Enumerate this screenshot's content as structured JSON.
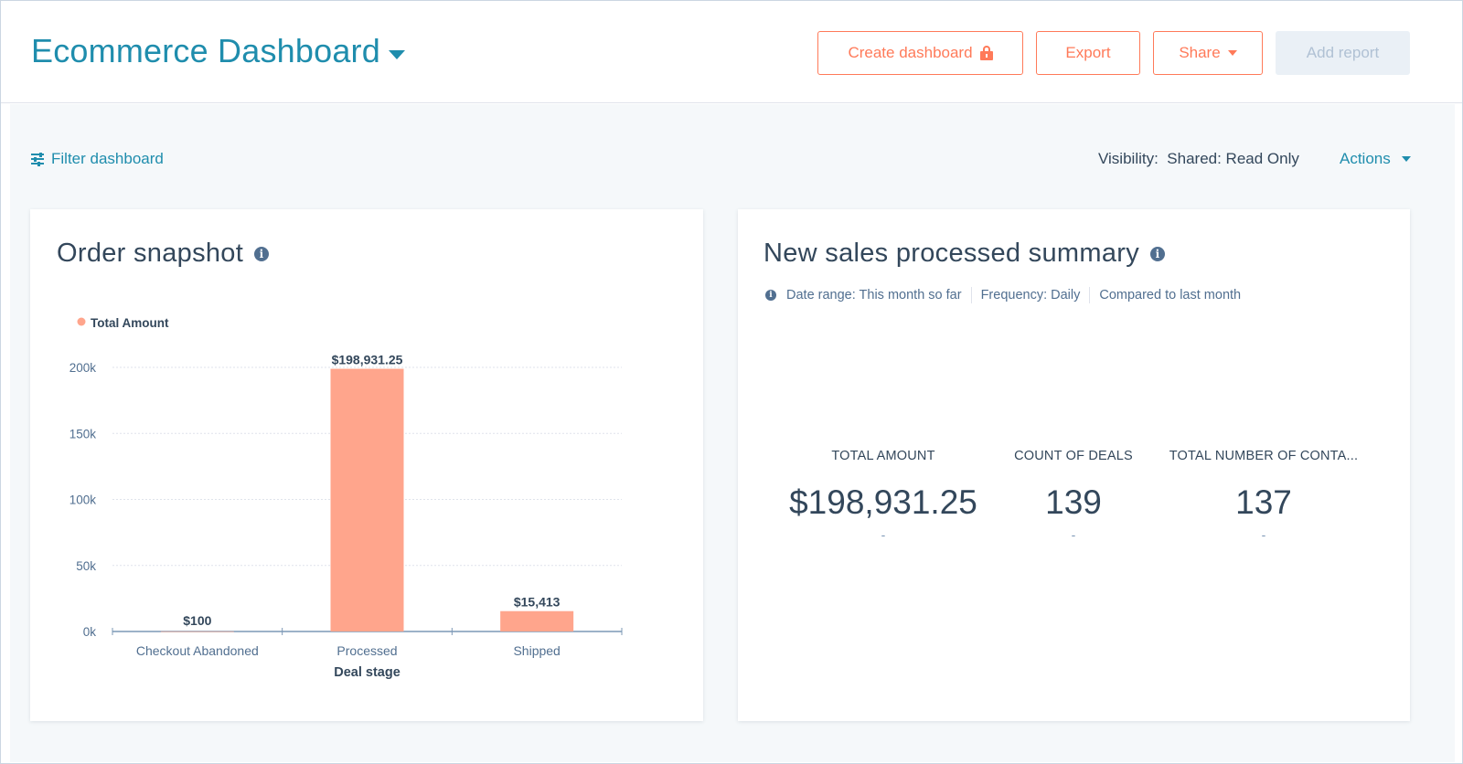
{
  "header": {
    "title": "Ecommerce Dashboard",
    "buttons": {
      "create_dashboard": "Create dashboard",
      "export": "Export",
      "share": "Share",
      "add_report": "Add report"
    }
  },
  "toolbar": {
    "filter_label": "Filter dashboard",
    "visibility_label": "Visibility:",
    "visibility_value": "Shared: Read Only",
    "actions_label": "Actions"
  },
  "order_snapshot": {
    "title": "Order snapshot"
  },
  "chart_data": {
    "type": "bar",
    "title": "Order snapshot",
    "xlabel": "Deal stage",
    "ylabel": "",
    "categories": [
      "Checkout Abandoned",
      "Processed",
      "Shipped"
    ],
    "series": [
      {
        "name": "Total Amount",
        "values": [
          100,
          198931.25,
          15413
        ],
        "labels": [
          "$100",
          "$198,931.25",
          "$15,413"
        ],
        "color": "#ffa58c"
      }
    ],
    "ylim": [
      0,
      200000
    ],
    "yticks": [
      0,
      50000,
      100000,
      150000,
      200000
    ],
    "ytick_labels": [
      "0k",
      "50k",
      "100k",
      "150k",
      "200k"
    ],
    "grid": true,
    "legend": "top-left"
  },
  "sales_summary": {
    "title": "New sales processed summary",
    "date_range": "Date range: This month so far",
    "frequency": "Frequency: Daily",
    "compared": "Compared to last month",
    "kpis": [
      {
        "label": "TOTAL AMOUNT",
        "value": "$198,931.25",
        "change": "-"
      },
      {
        "label": "COUNT OF DEALS",
        "value": "139",
        "change": "-"
      },
      {
        "label": "TOTAL NUMBER OF CONTA...",
        "value": "137",
        "change": "-"
      }
    ]
  },
  "colors": {
    "brand": "#1f8dad",
    "accent": "#ff7a59",
    "bar": "#ffa58c",
    "text": "#33475b"
  }
}
